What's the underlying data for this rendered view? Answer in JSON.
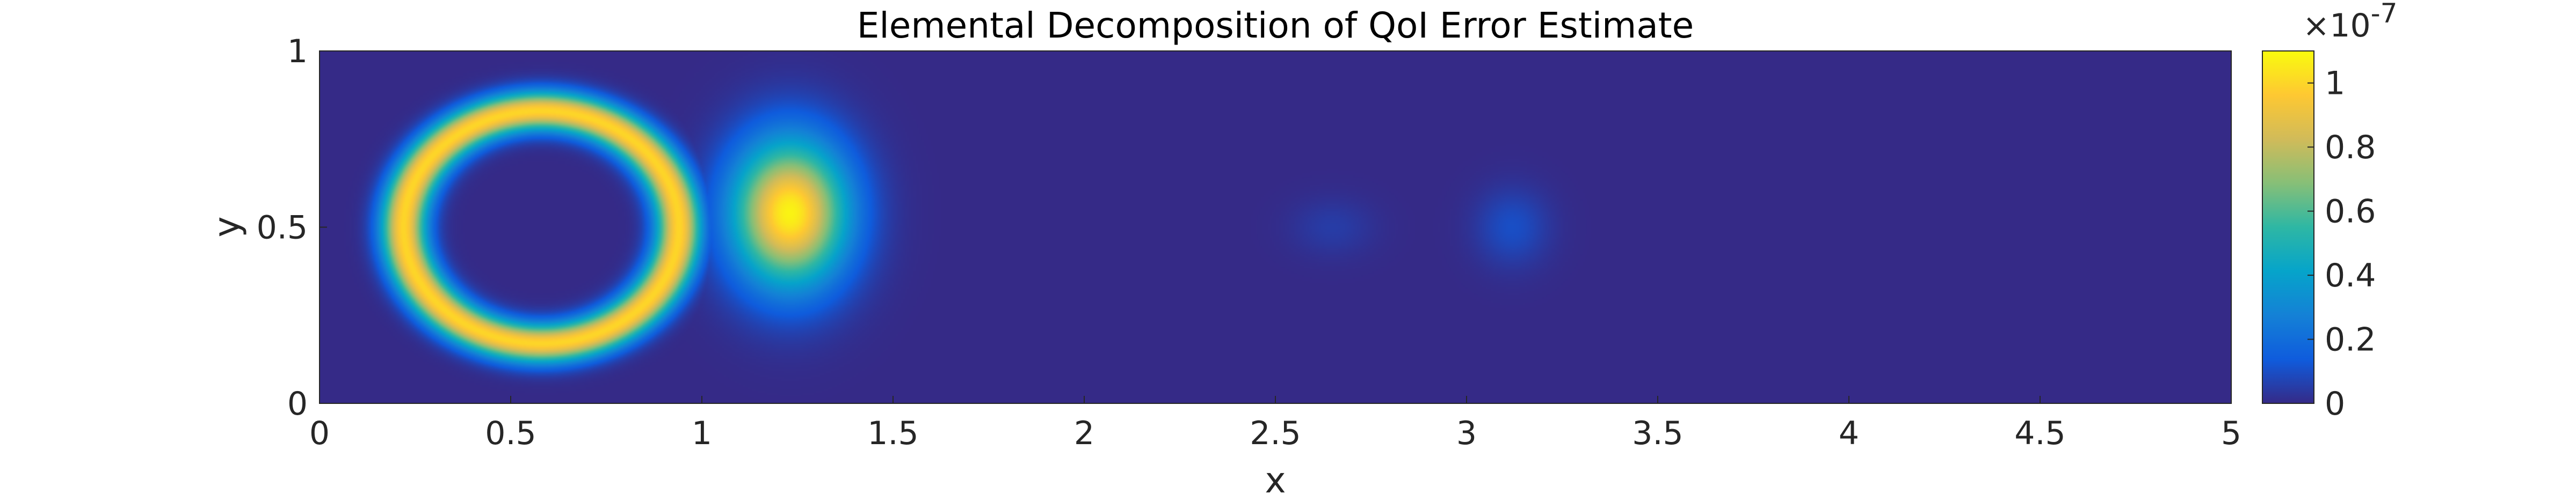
{
  "chart_data": {
    "type": "heatmap",
    "title": "Elemental Decomposition of QoI Error Estimate",
    "xlabel": "x",
    "ylabel": "y",
    "xlim": [
      0,
      5
    ],
    "ylim": [
      0,
      1
    ],
    "xticks": [
      0,
      0.5,
      1,
      1.5,
      2,
      2.5,
      3,
      3.5,
      4,
      4.5,
      5
    ],
    "xtick_labels": [
      "0",
      "0.5",
      "1",
      "1.5",
      "2",
      "2.5",
      "3",
      "3.5",
      "4",
      "4.5",
      "5"
    ],
    "yticks": [
      0,
      0.5,
      1
    ],
    "ytick_labels": [
      "0",
      "0.5",
      "1"
    ],
    "colorbar": {
      "colormap": "parula",
      "range": [
        0,
        1.1e-07
      ],
      "ticks": [
        0,
        0.2,
        0.4,
        0.6,
        0.8,
        1
      ],
      "tick_labels": [
        "0",
        "0.2",
        "0.4",
        "0.6",
        "0.8",
        "1"
      ],
      "multiplier_base": "×10",
      "multiplier_exponent": "-7"
    },
    "background_value": 0,
    "features": [
      {
        "name": "ring around obstacle",
        "kind": "ring",
        "center": [
          0.58,
          0.5
        ],
        "radii": [
          0.36,
          0.33
        ],
        "band_width": 0.055,
        "peak_value": 1e-07
      },
      {
        "name": "wake blob",
        "kind": "blob",
        "center": [
          1.23,
          0.54
        ],
        "radii": [
          0.22,
          0.3
        ],
        "peak_value": 1.08e-07
      },
      {
        "name": "faint blob",
        "kind": "blob",
        "center": [
          2.65,
          0.5
        ],
        "radii": [
          0.16,
          0.12
        ],
        "peak_value": 5e-09
      },
      {
        "name": "small blob",
        "kind": "blob",
        "center": [
          3.12,
          0.5
        ],
        "radii": [
          0.14,
          0.16
        ],
        "peak_value": 1e-08
      }
    ]
  }
}
